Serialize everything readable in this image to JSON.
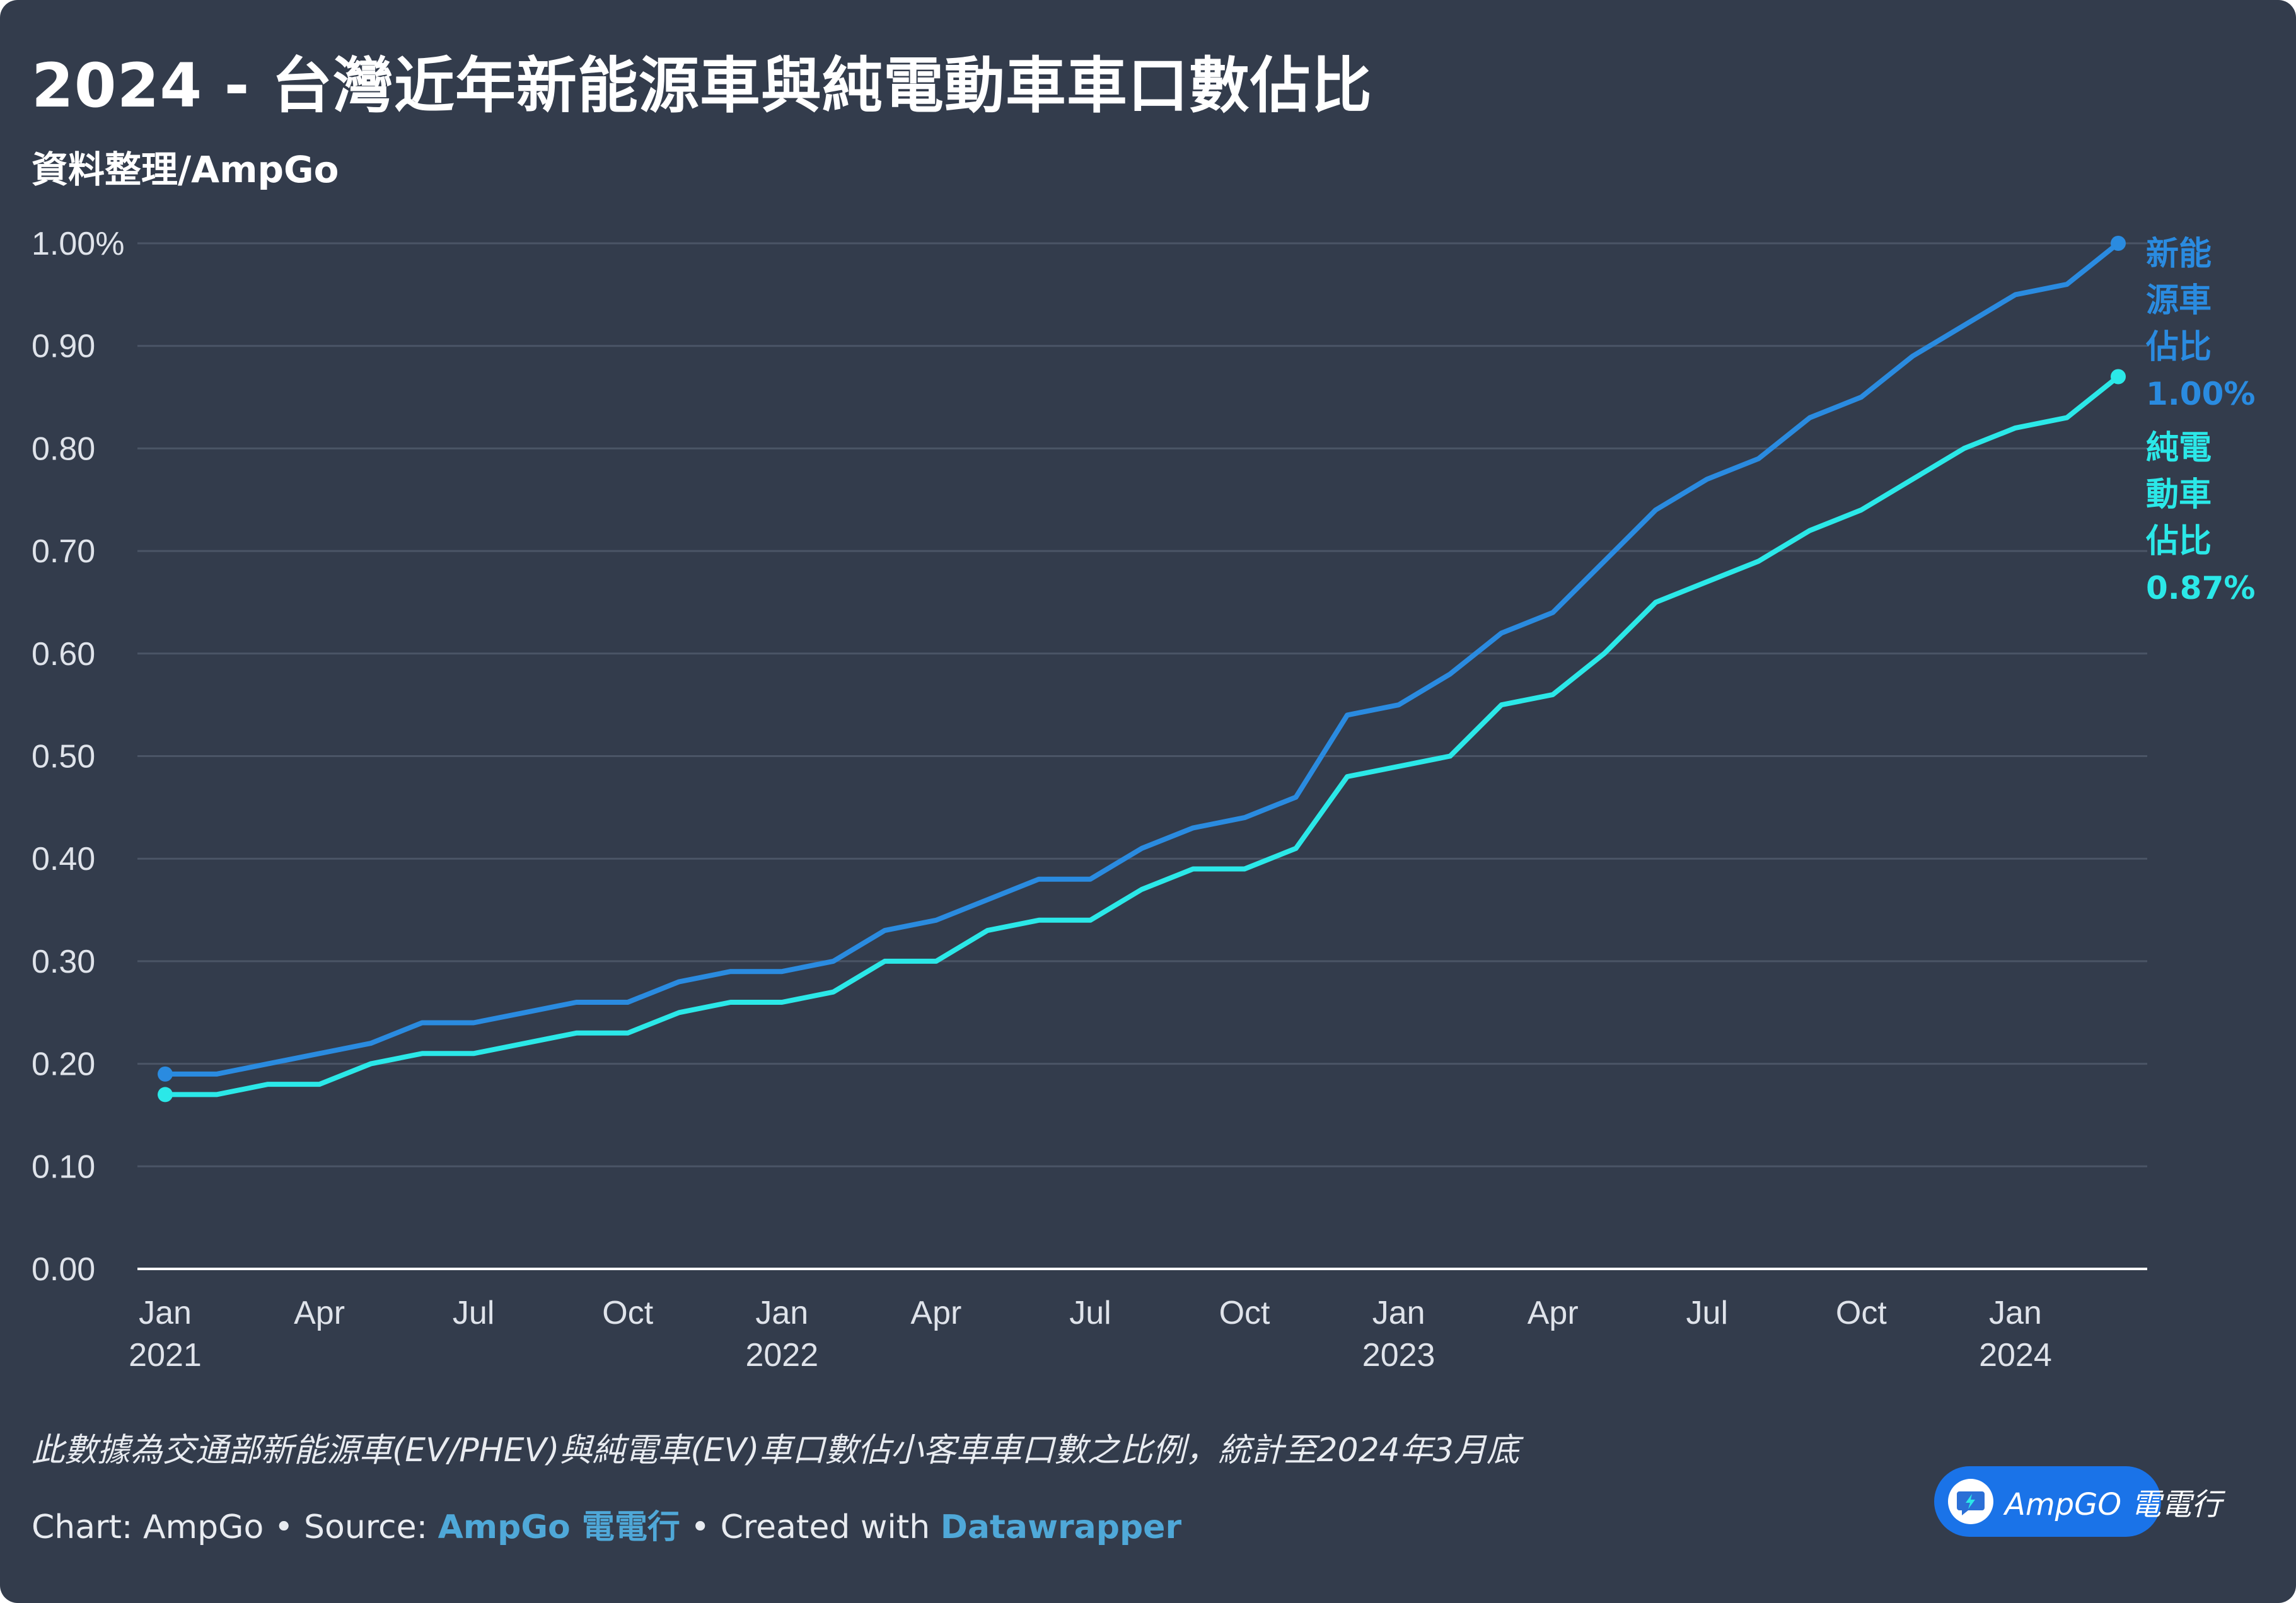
{
  "title": "2024 - 台灣近年新能源車與純電動車車口數佔比",
  "subtitle": "資料整理/AmpGo",
  "note": "此數據為交通部新能源車(EV/PHEV)與純電車(EV)車口數佔小客車車口數之比例，統計至2024年3月底",
  "credits": {
    "chart_prefix": "Chart: AmpGo • Source: ",
    "source_link": "AmpGo 電電行",
    "created_prefix": " • Created with ",
    "tool_link": "Datawrapper"
  },
  "badge": {
    "text": "AmpGO 電電行",
    "icon": "lightning-chat-icon"
  },
  "colors": {
    "background": "#333c4c",
    "nev": "#2a8be0",
    "bev": "#2be8e8",
    "grid": "#4b5566",
    "axis": "#ffffff",
    "tick_text": "#dfe3ea"
  },
  "chart_data": {
    "type": "line",
    "x": [
      "2021-01",
      "2021-02",
      "2021-03",
      "2021-04",
      "2021-05",
      "2021-06",
      "2021-07",
      "2021-08",
      "2021-09",
      "2021-10",
      "2021-11",
      "2021-12",
      "2022-01",
      "2022-02",
      "2022-03",
      "2022-04",
      "2022-05",
      "2022-06",
      "2022-07",
      "2022-08",
      "2022-09",
      "2022-10",
      "2022-11",
      "2022-12",
      "2023-01",
      "2023-02",
      "2023-03",
      "2023-04",
      "2023-05",
      "2023-06",
      "2023-07",
      "2023-08",
      "2023-09",
      "2023-10",
      "2023-11",
      "2023-12",
      "2024-01",
      "2024-02",
      "2024-03"
    ],
    "series": [
      {
        "key": "nev",
        "name": "新能源車佔比",
        "label_lines": [
          "新能",
          "源車",
          "佔比"
        ],
        "end_label": "1.00%",
        "values": [
          0.19,
          0.19,
          0.2,
          0.21,
          0.22,
          0.24,
          0.24,
          0.25,
          0.26,
          0.26,
          0.28,
          0.29,
          0.29,
          0.3,
          0.33,
          0.34,
          0.36,
          0.38,
          0.38,
          0.41,
          0.43,
          0.44,
          0.46,
          0.54,
          0.55,
          0.58,
          0.62,
          0.64,
          0.69,
          0.74,
          0.77,
          0.79,
          0.83,
          0.85,
          0.89,
          0.92,
          0.95,
          0.96,
          1.0
        ]
      },
      {
        "key": "bev",
        "name": "純電動車佔比",
        "label_lines": [
          "純電",
          "動車",
          "佔比"
        ],
        "end_label": "0.87%",
        "values": [
          0.17,
          0.17,
          0.18,
          0.18,
          0.2,
          0.21,
          0.21,
          0.22,
          0.23,
          0.23,
          0.25,
          0.26,
          0.26,
          0.27,
          0.3,
          0.3,
          0.33,
          0.34,
          0.34,
          0.37,
          0.39,
          0.39,
          0.41,
          0.48,
          0.49,
          0.5,
          0.55,
          0.56,
          0.6,
          0.65,
          0.67,
          0.69,
          0.72,
          0.74,
          0.77,
          0.8,
          0.82,
          0.83,
          0.87
        ]
      }
    ],
    "ylim": [
      0,
      1.0
    ],
    "yticks": [
      0,
      0.1,
      0.2,
      0.3,
      0.4,
      0.5,
      0.6,
      0.7,
      0.8,
      0.9,
      1.0
    ],
    "ytick_labels": [
      "0.00",
      "0.10",
      "0.20",
      "0.30",
      "0.40",
      "0.50",
      "0.60",
      "0.70",
      "0.80",
      "0.90",
      "1.00%"
    ],
    "xticks": [
      {
        "at": "2021-01",
        "month": "Jan",
        "year": "2021"
      },
      {
        "at": "2021-04",
        "month": "Apr",
        "year": ""
      },
      {
        "at": "2021-07",
        "month": "Jul",
        "year": ""
      },
      {
        "at": "2021-10",
        "month": "Oct",
        "year": ""
      },
      {
        "at": "2022-01",
        "month": "Jan",
        "year": "2022"
      },
      {
        "at": "2022-04",
        "month": "Apr",
        "year": ""
      },
      {
        "at": "2022-07",
        "month": "Jul",
        "year": ""
      },
      {
        "at": "2022-10",
        "month": "Oct",
        "year": ""
      },
      {
        "at": "2023-01",
        "month": "Jan",
        "year": "2023"
      },
      {
        "at": "2023-04",
        "month": "Apr",
        "year": ""
      },
      {
        "at": "2023-07",
        "month": "Jul",
        "year": ""
      },
      {
        "at": "2023-10",
        "month": "Oct",
        "year": ""
      },
      {
        "at": "2024-01",
        "month": "Jan",
        "year": "2024"
      }
    ],
    "grid": true,
    "legend": "inline-right"
  }
}
